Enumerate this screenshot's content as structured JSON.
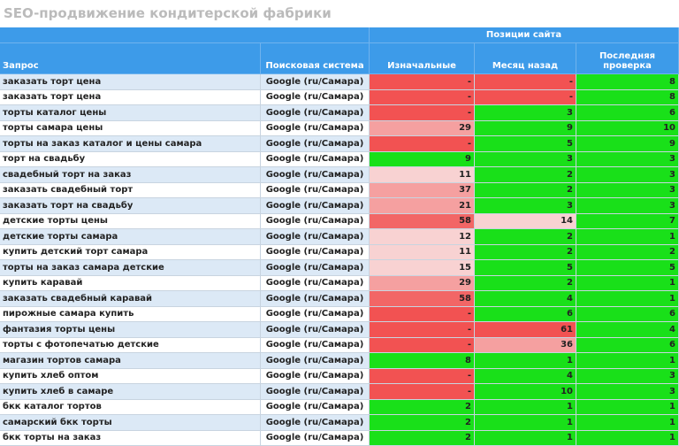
{
  "header": {
    "title": "SEO-продвижение кондитерской фабрики"
  },
  "table": {
    "group_header": "Позиции сайта",
    "columns": [
      "Запрос",
      "Поисковая система",
      "Изначальные",
      "Месяц назад",
      "Последняя проверка"
    ],
    "rows": [
      {
        "query": "заказать торт цена",
        "engine": "Google (ru/Самара)",
        "initial": "-",
        "month": "-",
        "last": 8,
        "colors": [
          "#f25252",
          "#f25252",
          "#19e019"
        ]
      },
      {
        "query": "заказать торт цена",
        "engine": "Google (ru/Самара)",
        "initial": "-",
        "month": "-",
        "last": 8,
        "colors": [
          "#f25252",
          "#f25252",
          "#19e019"
        ]
      },
      {
        "query": "торты каталог цены",
        "engine": "Google (ru/Самара)",
        "initial": "-",
        "month": 3,
        "last": 6,
        "colors": [
          "#f25252",
          "#19e019",
          "#19e019"
        ]
      },
      {
        "query": "торты самара цены",
        "engine": "Google (ru/Самара)",
        "initial": 29,
        "month": 9,
        "last": 10,
        "colors": [
          "#f5a0a0",
          "#19e019",
          "#19e019"
        ]
      },
      {
        "query": "торты на заказ каталог и цены самара",
        "engine": "Google (ru/Самара)",
        "initial": "-",
        "month": 5,
        "last": 9,
        "colors": [
          "#f25252",
          "#19e019",
          "#19e019"
        ]
      },
      {
        "query": "торт на свадьбу",
        "engine": "Google (ru/Самара)",
        "initial": 9,
        "month": 3,
        "last": 3,
        "colors": [
          "#19e019",
          "#19e019",
          "#19e019"
        ]
      },
      {
        "query": "свадебный торт на заказ",
        "engine": "Google (ru/Самара)",
        "initial": 11,
        "month": 2,
        "last": 3,
        "colors": [
          "#f8d2d2",
          "#19e019",
          "#19e019"
        ]
      },
      {
        "query": "заказать свадебный торт",
        "engine": "Google (ru/Самара)",
        "initial": 37,
        "month": 2,
        "last": 3,
        "colors": [
          "#f5a0a0",
          "#19e019",
          "#19e019"
        ]
      },
      {
        "query": "заказать торт на свадьбу",
        "engine": "Google (ru/Самара)",
        "initial": 21,
        "month": 3,
        "last": 3,
        "colors": [
          "#f5a0a0",
          "#19e019",
          "#19e019"
        ]
      },
      {
        "query": "детские торты цены",
        "engine": "Google (ru/Самара)",
        "initial": 58,
        "month": 14,
        "last": 7,
        "colors": [
          "#f26666",
          "#f8d2d2",
          "#19e019"
        ]
      },
      {
        "query": "детские торты самара",
        "engine": "Google (ru/Самара)",
        "initial": 12,
        "month": 2,
        "last": 1,
        "colors": [
          "#f8d2d2",
          "#19e019",
          "#19e019"
        ]
      },
      {
        "query": "купить детский торт самара",
        "engine": "Google (ru/Самара)",
        "initial": 11,
        "month": 2,
        "last": 2,
        "colors": [
          "#f8d2d2",
          "#19e019",
          "#19e019"
        ]
      },
      {
        "query": "торты на заказ самара детские",
        "engine": "Google (ru/Самара)",
        "initial": 15,
        "month": 5,
        "last": 5,
        "colors": [
          "#f8d2d2",
          "#19e019",
          "#19e019"
        ]
      },
      {
        "query": "купить каравай",
        "engine": "Google (ru/Самара)",
        "initial": 29,
        "month": 2,
        "last": 1,
        "colors": [
          "#f5a0a0",
          "#19e019",
          "#19e019"
        ]
      },
      {
        "query": "заказать свадебный каравай",
        "engine": "Google (ru/Самара)",
        "initial": 58,
        "month": 4,
        "last": 1,
        "colors": [
          "#f26666",
          "#19e019",
          "#19e019"
        ]
      },
      {
        "query": "пирожные самара купить",
        "engine": "Google (ru/Самара)",
        "initial": "-",
        "month": 6,
        "last": 6,
        "colors": [
          "#f25252",
          "#19e019",
          "#19e019"
        ]
      },
      {
        "query": "фантазия торты цены",
        "engine": "Google (ru/Самара)",
        "initial": "-",
        "month": 61,
        "last": 4,
        "colors": [
          "#f25252",
          "#f25252",
          "#19e019"
        ]
      },
      {
        "query": "торты с фотопечатью детские",
        "engine": "Google (ru/Самара)",
        "initial": "-",
        "month": 36,
        "last": 6,
        "colors": [
          "#f25252",
          "#f5a0a0",
          "#19e019"
        ]
      },
      {
        "query": "магазин тортов самара",
        "engine": "Google (ru/Самара)",
        "initial": 8,
        "month": 1,
        "last": 1,
        "colors": [
          "#19e019",
          "#19e019",
          "#19e019"
        ]
      },
      {
        "query": "купить хлеб оптом",
        "engine": "Google (ru/Самара)",
        "initial": "-",
        "month": 4,
        "last": 3,
        "colors": [
          "#f25252",
          "#19e019",
          "#19e019"
        ]
      },
      {
        "query": "купить хлеб в самаре",
        "engine": "Google (ru/Самара)",
        "initial": "-",
        "month": 10,
        "last": 3,
        "colors": [
          "#f25252",
          "#19e019",
          "#19e019"
        ]
      },
      {
        "query": "бкк каталог тортов",
        "engine": "Google (ru/Самара)",
        "initial": 2,
        "month": 1,
        "last": 1,
        "colors": [
          "#19e019",
          "#19e019",
          "#19e019"
        ]
      },
      {
        "query": "самарский бкк торты",
        "engine": "Google (ru/Самара)",
        "initial": 2,
        "month": 1,
        "last": 1,
        "colors": [
          "#19e019",
          "#19e019",
          "#19e019"
        ]
      },
      {
        "query": "бкк торты на заказ",
        "engine": "Google (ru/Самара)",
        "initial": 2,
        "month": 1,
        "last": 1,
        "colors": [
          "#19e019",
          "#19e019",
          "#19e019"
        ]
      }
    ]
  }
}
